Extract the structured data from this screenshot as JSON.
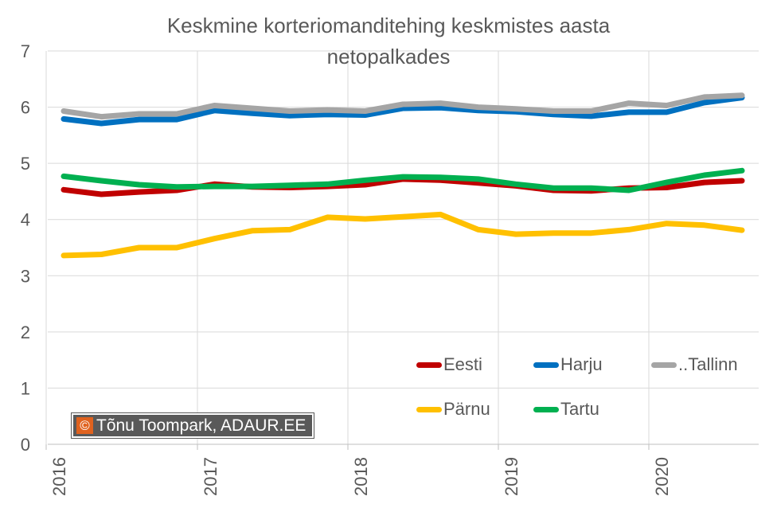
{
  "chart_data": {
    "type": "line",
    "title_line1": "Keskmine korteriomanditehing keskmistes aasta",
    "title_line2": "netopalkades",
    "x": [
      "2016Q1",
      "2016Q2",
      "2016Q3",
      "2016Q4",
      "2017Q1",
      "2017Q2",
      "2017Q3",
      "2017Q4",
      "2018Q1",
      "2018Q2",
      "2018Q3",
      "2018Q4",
      "2019Q1",
      "2019Q2",
      "2019Q3",
      "2019Q4",
      "2020Q1",
      "2020Q2",
      "2020Q3"
    ],
    "x_tick_labels": [
      "2016",
      "2017",
      "2018",
      "2019",
      "2020"
    ],
    "y_ticks": [
      "0",
      "1",
      "2",
      "3",
      "4",
      "5",
      "6",
      "7"
    ],
    "ylim": [
      0,
      7
    ],
    "grid": true,
    "legend_position": "bottom-right inside plot",
    "series": [
      {
        "name": "Eesti",
        "color": "#C00000",
        "values": [
          4.53,
          4.45,
          4.49,
          4.52,
          4.63,
          4.58,
          4.57,
          4.59,
          4.62,
          4.72,
          4.7,
          4.65,
          4.6,
          4.52,
          4.51,
          4.56,
          4.57,
          4.66,
          4.69
        ]
      },
      {
        "name": "Harju",
        "color": "#0070C0",
        "values": [
          5.79,
          5.71,
          5.78,
          5.78,
          5.94,
          5.89,
          5.85,
          5.87,
          5.86,
          5.98,
          5.99,
          5.94,
          5.92,
          5.87,
          5.84,
          5.91,
          5.91,
          6.08,
          6.17
        ]
      },
      {
        "name": "..Tallinn",
        "color": "#A5A5A5",
        "values": [
          5.93,
          5.83,
          5.88,
          5.88,
          6.03,
          5.98,
          5.93,
          5.95,
          5.93,
          6.05,
          6.07,
          6.0,
          5.97,
          5.93,
          5.93,
          6.07,
          6.03,
          6.18,
          6.21
        ]
      },
      {
        "name": "Pärnu",
        "color": "#FFC000",
        "values": [
          3.36,
          3.38,
          3.5,
          3.5,
          3.66,
          3.8,
          3.82,
          4.04,
          4.01,
          4.05,
          4.09,
          3.82,
          3.74,
          3.76,
          3.76,
          3.82,
          3.93,
          3.9,
          3.81
        ]
      },
      {
        "name": "Tartu",
        "color": "#00B050",
        "values": [
          4.77,
          4.69,
          4.62,
          4.58,
          4.59,
          4.59,
          4.61,
          4.63,
          4.7,
          4.76,
          4.75,
          4.72,
          4.63,
          4.56,
          4.56,
          4.52,
          4.66,
          4.79,
          4.87
        ]
      }
    ]
  },
  "credit": {
    "icon": "©",
    "text": "Tõnu Toompark, ADAUR.EE"
  }
}
